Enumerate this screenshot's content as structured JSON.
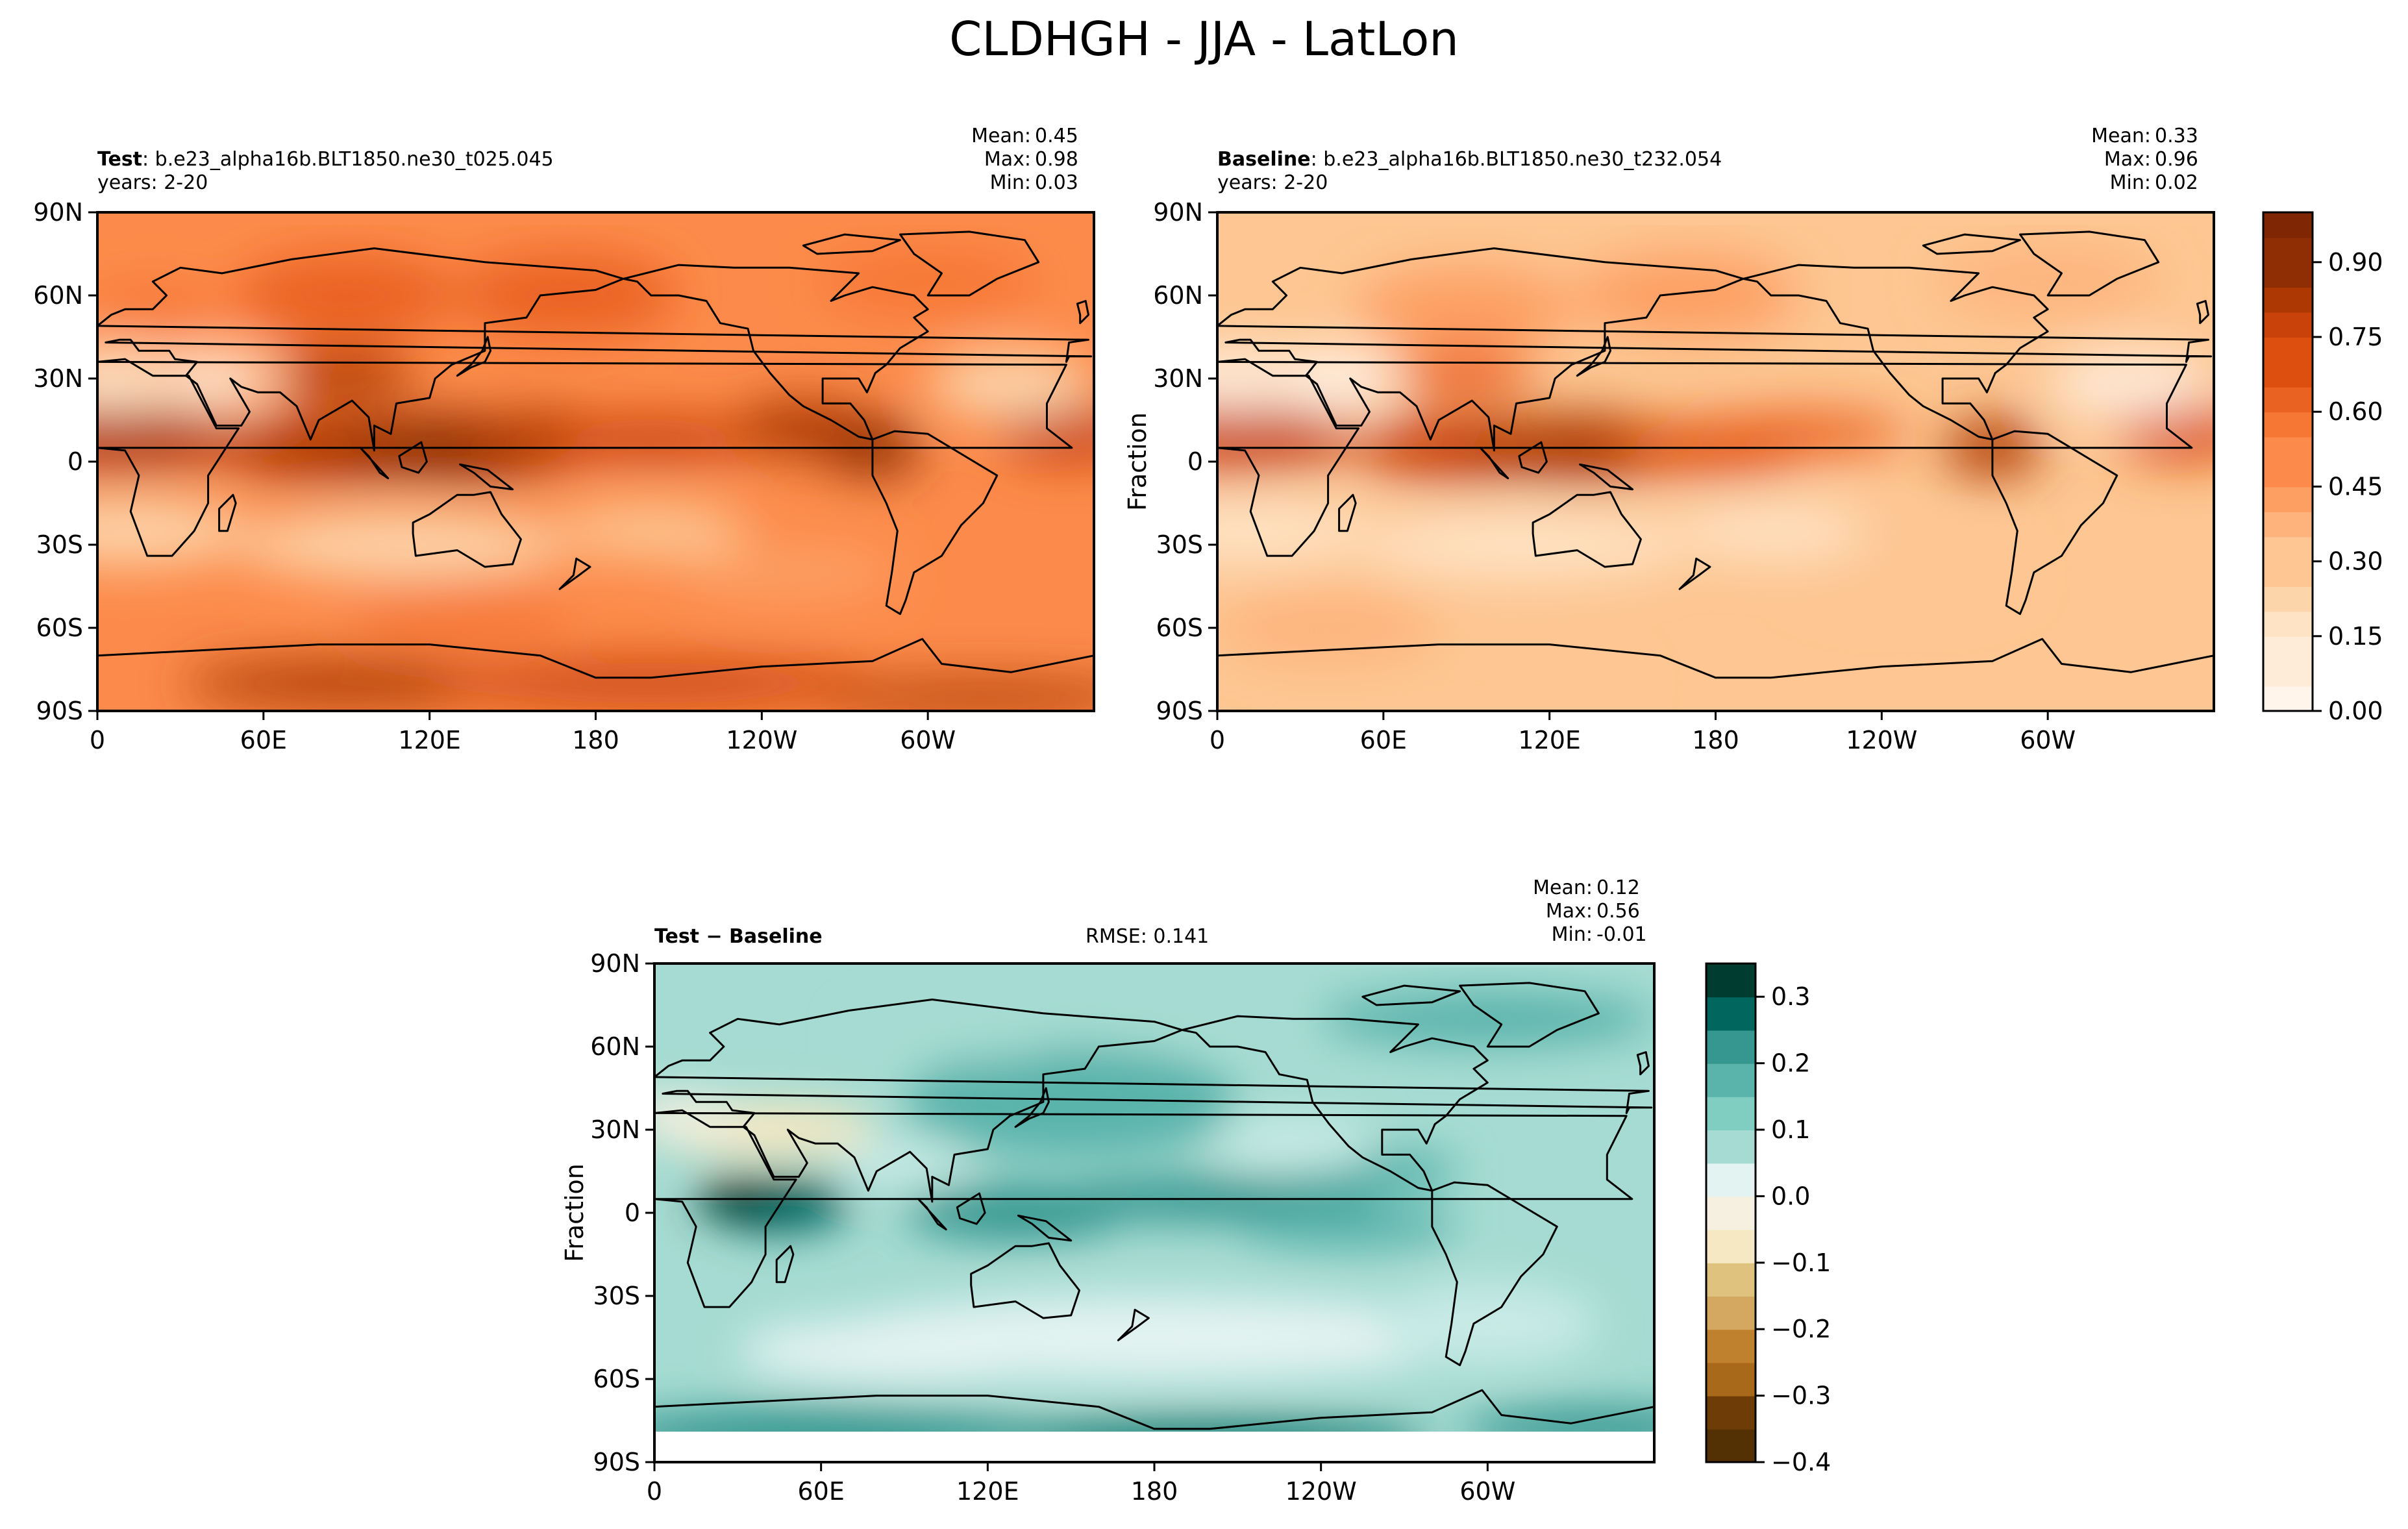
{
  "figure_title": "CLDHGH - JJA - LatLon",
  "colors": {
    "orange_scale": [
      "#fff5eb",
      "#feebd8",
      "#fee3c4",
      "#fdd5ab",
      "#fdc692",
      "#fdb37b",
      "#fd9f63",
      "#fc8b4b",
      "#f67734",
      "#ea6222",
      "#dc4f0f",
      "#c8420a",
      "#ad3803",
      "#8f2e04",
      "#7f2704"
    ],
    "diff_scale": [
      "#543005",
      "#6e3d07",
      "#8c510a",
      "#a9691b",
      "#bf812d",
      "#d4a861",
      "#dfc27d",
      "#eddba8",
      "#f6e8c3",
      "#f5f0e0",
      "#e3f3f1",
      "#c7eae5",
      "#a5dbd2",
      "#80cdc1",
      "#5ab4ab",
      "#35978f",
      "#1c7f76",
      "#01665e",
      "#003c30"
    ]
  },
  "chart_data": [
    {
      "type": "heatmap",
      "panel": "test",
      "label_bold": "Test",
      "case_name": ": b.e23_alpha16b.BLT1850.ne30_t025.045",
      "years": "years: 2-20",
      "stats": {
        "mean": "0.45",
        "max": "0.98",
        "min": "0.03"
      },
      "xticks": [
        "0",
        "60E",
        "120E",
        "180",
        "120W",
        "60W"
      ],
      "yticks": [
        "90N",
        "60N",
        "30N",
        "0",
        "30S",
        "60S",
        "90S"
      ],
      "xlim": [
        0,
        360
      ],
      "ylim": [
        -90,
        90
      ],
      "value_range": [
        0.0,
        0.98
      ],
      "colormap": "Oranges",
      "ylabel": ""
    },
    {
      "type": "heatmap",
      "panel": "baseline",
      "label_bold": "Baseline",
      "case_name": ": b.e23_alpha16b.BLT1850.ne30_t232.054",
      "years": "years: 2-20",
      "stats": {
        "mean": "0.33",
        "max": "0.96",
        "min": "0.02"
      },
      "xticks": [
        "0",
        "60E",
        "120E",
        "180",
        "120W",
        "60W"
      ],
      "yticks": [
        "90N",
        "60N",
        "30N",
        "0",
        "30S",
        "60S",
        "90S"
      ],
      "xlim": [
        0,
        360
      ],
      "ylim": [
        -90,
        90
      ],
      "value_range": [
        0.0,
        0.96
      ],
      "colormap": "Oranges",
      "ylabel": "Fraction",
      "colorbar": {
        "min": 0.0,
        "max": 1.0,
        "ticks": [
          "0.00",
          "0.15",
          "0.30",
          "0.45",
          "0.60",
          "0.75",
          "0.90"
        ],
        "tick_values": [
          0.0,
          0.15,
          0.3,
          0.45,
          0.6,
          0.75,
          0.9
        ],
        "levels": 20
      }
    },
    {
      "type": "heatmap",
      "panel": "difference",
      "label_bold": "Test − Baseline",
      "rmse": "RMSE: 0.141",
      "stats": {
        "mean": "0.12",
        "max": "0.56",
        "min": "-0.01"
      },
      "xticks": [
        "0",
        "60E",
        "120E",
        "180",
        "120W",
        "60W"
      ],
      "yticks": [
        "90N",
        "60N",
        "30N",
        "0",
        "30S",
        "60S",
        "90S"
      ],
      "xlim": [
        0,
        360
      ],
      "ylim": [
        -90,
        90
      ],
      "value_range": [
        -0.01,
        0.56
      ],
      "colormap": "BrBG",
      "ylabel": "Fraction",
      "colorbar": {
        "min": -0.4,
        "max": 0.35,
        "ticks": [
          "−0.4",
          "−0.3",
          "−0.2",
          "−0.1",
          "0.0",
          "0.1",
          "0.2",
          "0.3"
        ],
        "tick_values": [
          -0.4,
          -0.3,
          -0.2,
          -0.1,
          0.0,
          0.1,
          0.2,
          0.3
        ],
        "levels": 15
      }
    }
  ]
}
